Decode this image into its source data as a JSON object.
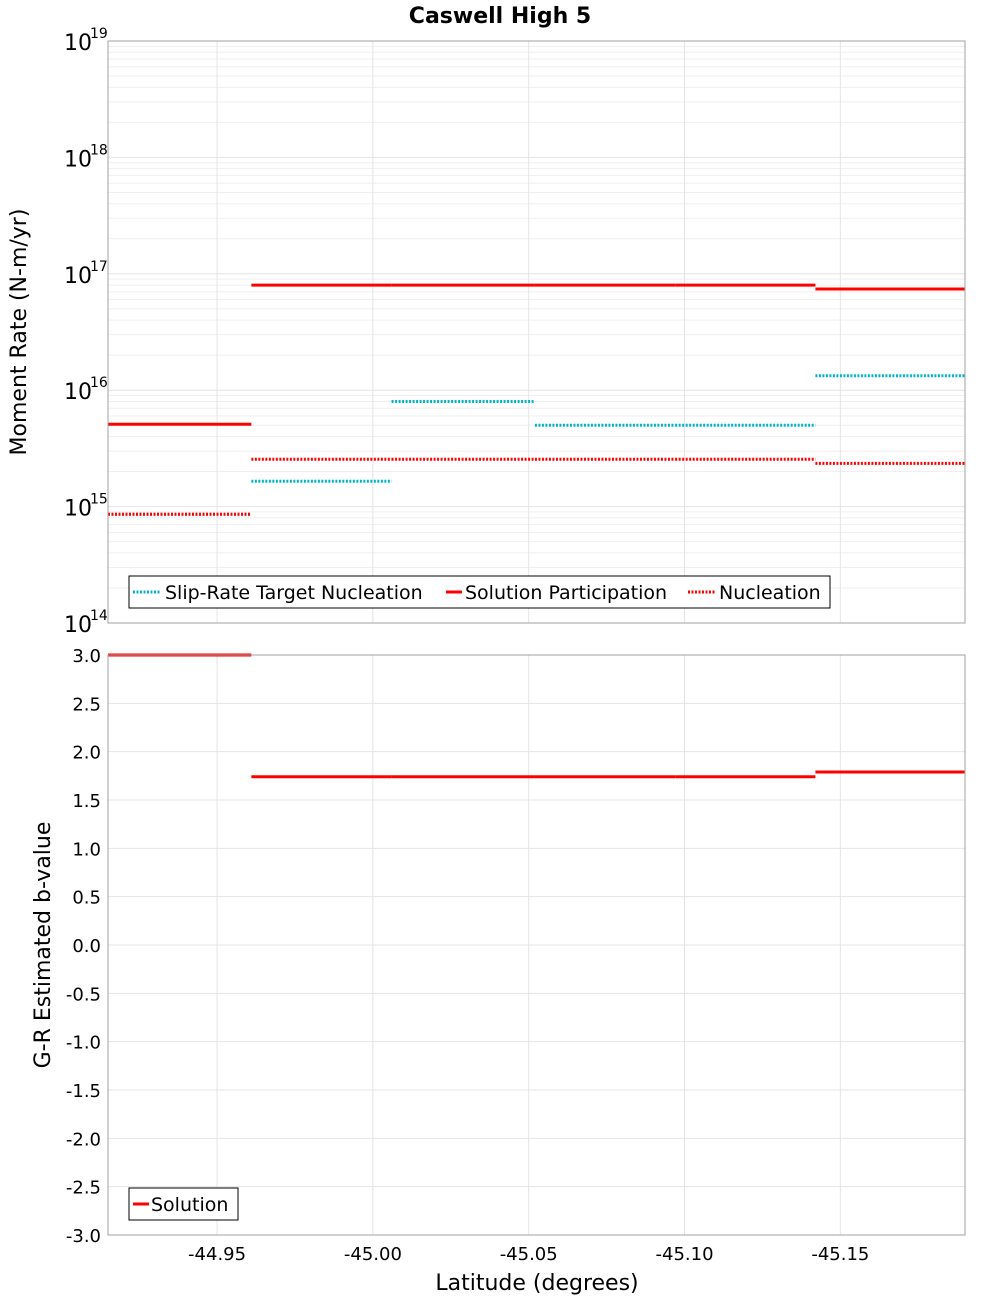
{
  "chart_data": [
    {
      "type": "line",
      "title": "Caswell High 5",
      "ylabel": "Moment Rate (N-m/yr)",
      "yscale": "log",
      "ylim": [
        100000000000000.0,
        1e+19
      ],
      "xlim": [
        -44.915,
        -45.19
      ],
      "y_ticks": [
        {
          "base": "10",
          "exp": "14",
          "value": 100000000000000.0
        },
        {
          "base": "10",
          "exp": "15",
          "value": 1000000000000000.0
        },
        {
          "base": "10",
          "exp": "16",
          "value": 1e+16
        },
        {
          "base": "10",
          "exp": "17",
          "value": 1e+17
        },
        {
          "base": "10",
          "exp": "18",
          "value": 1e+18
        },
        {
          "base": "10",
          "exp": "19",
          "value": 1e+19
        }
      ],
      "legend_position": "bottom-left",
      "series": [
        {
          "name": "Slip-Rate Target Nucleation",
          "color": "#00b5c8",
          "style": "dotted",
          "segments": [
            {
              "x0": -44.915,
              "x1": -44.961,
              "y": 860000000000000.0
            },
            {
              "x0": -44.961,
              "x1": -45.006,
              "y": 1650000000000000.0
            },
            {
              "x0": -45.006,
              "x1": -45.052,
              "y": 8000000000000000.0
            },
            {
              "x0": -45.052,
              "x1": -45.097,
              "y": 5000000000000000.0
            },
            {
              "x0": -45.097,
              "x1": -45.142,
              "y": 5000000000000000.0
            },
            {
              "x0": -45.142,
              "x1": -45.19,
              "y": 1.33e+16
            }
          ]
        },
        {
          "name": "Solution Participation",
          "color": "#ff0000",
          "style": "solid",
          "segments": [
            {
              "x0": -44.915,
              "x1": -44.961,
              "y": 5100000000000000.0
            },
            {
              "x0": -44.961,
              "x1": -45.006,
              "y": 8e+16
            },
            {
              "x0": -45.006,
              "x1": -45.052,
              "y": 8e+16
            },
            {
              "x0": -45.052,
              "x1": -45.097,
              "y": 8e+16
            },
            {
              "x0": -45.097,
              "x1": -45.142,
              "y": 8e+16
            },
            {
              "x0": -45.142,
              "x1": -45.19,
              "y": 7.4e+16
            }
          ]
        },
        {
          "name": "Nucleation",
          "color": "#ff0000",
          "style": "dotted",
          "segments": [
            {
              "x0": -44.915,
              "x1": -44.961,
              "y": 860000000000000.0
            },
            {
              "x0": -44.961,
              "x1": -45.006,
              "y": 2550000000000000.0
            },
            {
              "x0": -45.006,
              "x1": -45.052,
              "y": 2550000000000000.0
            },
            {
              "x0": -45.052,
              "x1": -45.097,
              "y": 2550000000000000.0
            },
            {
              "x0": -45.097,
              "x1": -45.142,
              "y": 2550000000000000.0
            },
            {
              "x0": -45.142,
              "x1": -45.19,
              "y": 2350000000000000.0
            }
          ]
        }
      ]
    },
    {
      "type": "line",
      "title": "",
      "xlabel": "Latitude (degrees)",
      "ylabel": "G-R Estimated b-value",
      "ylim": [
        -3.0,
        3.0
      ],
      "xlim": [
        -44.915,
        -45.19
      ],
      "y_ticks": [
        "3.0",
        "2.5",
        "2.0",
        "1.5",
        "1.0",
        "0.5",
        "0.0",
        "-0.5",
        "-1.0",
        "-1.5",
        "-2.0",
        "-2.5",
        "-3.0"
      ],
      "x_ticks": [
        "-44.95",
        "-45.00",
        "-45.05",
        "-45.10",
        "-45.15"
      ],
      "legend_position": "bottom-left",
      "series": [
        {
          "name": "Solution",
          "color": "#ff0000",
          "style": "solid",
          "segments": [
            {
              "x0": -44.915,
              "x1": -44.961,
              "y": 3.0
            },
            {
              "x0": -44.961,
              "x1": -45.006,
              "y": 1.74
            },
            {
              "x0": -45.006,
              "x1": -45.052,
              "y": 1.74
            },
            {
              "x0": -45.052,
              "x1": -45.097,
              "y": 1.74
            },
            {
              "x0": -45.097,
              "x1": -45.142,
              "y": 1.74
            },
            {
              "x0": -45.142,
              "x1": -45.19,
              "y": 1.79
            }
          ]
        }
      ]
    }
  ]
}
